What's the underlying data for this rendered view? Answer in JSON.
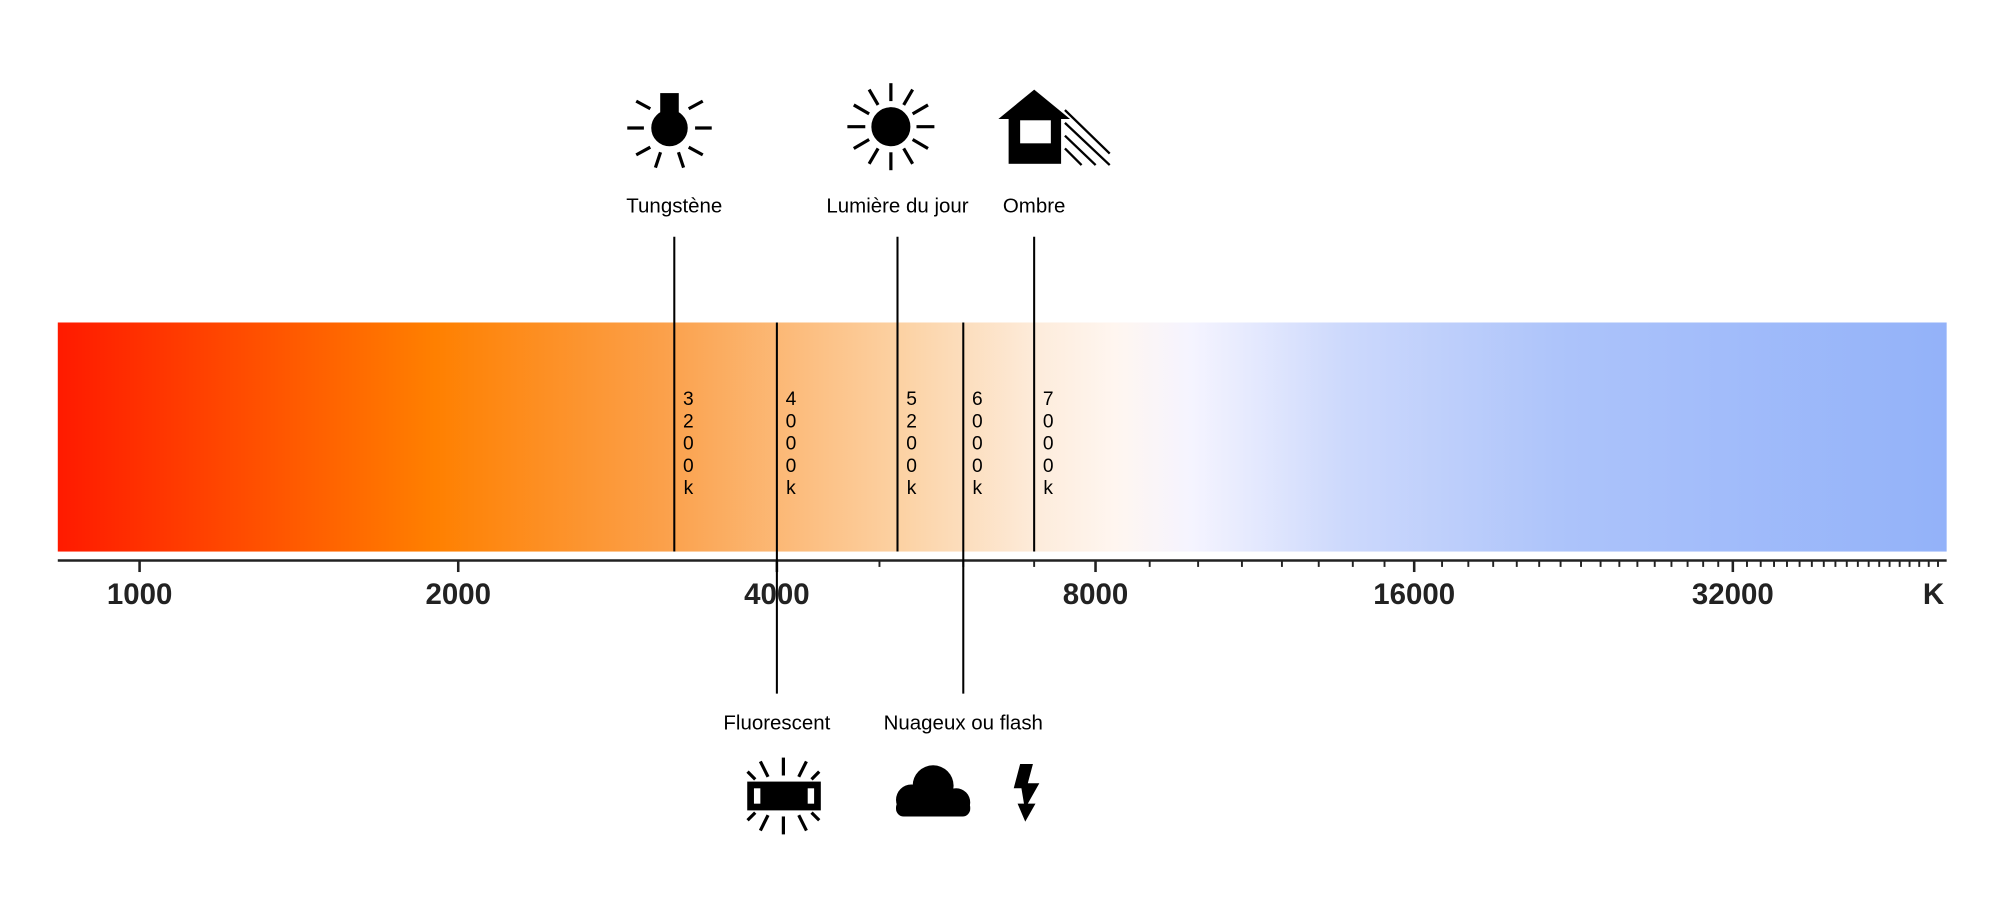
{
  "chart_data": {
    "type": "color-temperature-scale",
    "log_scale": true,
    "xlim": [
      837,
      50950
    ],
    "xticks": [
      1000,
      2000,
      4000,
      8000,
      16000,
      32000
    ],
    "minor_xticks": [
      5000,
      6000,
      7000,
      9000,
      10000,
      11000,
      12000,
      13000,
      14000,
      15000,
      17000,
      18000,
      19000,
      20000,
      21000,
      22000,
      23000,
      24000,
      25000,
      26000,
      27000,
      28000,
      29000,
      30000,
      31000,
      33000,
      34000,
      35000,
      36000,
      37000,
      38000,
      39000,
      40000,
      41000,
      42000,
      43000,
      44000,
      45000,
      46000,
      47000,
      48000,
      49000,
      50000
    ],
    "unit_label": "K",
    "categories": [
      "Tungstène",
      "Fluorescent",
      "Lumière du jour",
      "Nuageux ou flash",
      "Ombre"
    ],
    "values": [
      3200,
      4000,
      5200,
      6000,
      7000
    ],
    "value_labels": [
      "3200k",
      "4000k",
      "5200k",
      "6000k",
      "7000k"
    ],
    "label_sides": [
      "above",
      "below",
      "above",
      "below",
      "above"
    ]
  }
}
